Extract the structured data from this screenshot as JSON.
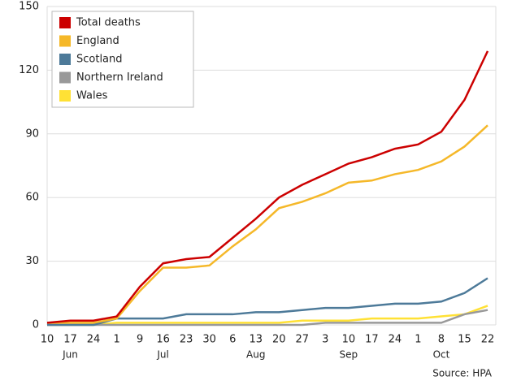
{
  "chart_data": {
    "type": "line",
    "categories": [
      "10",
      "17",
      "24",
      "1",
      "9",
      "16",
      "23",
      "30",
      "6",
      "13",
      "20",
      "27",
      "3",
      "10",
      "17",
      "24",
      "1",
      "8",
      "15",
      "22"
    ],
    "month_labels": [
      null,
      "Jun",
      null,
      null,
      null,
      "Jul",
      null,
      null,
      null,
      "Aug",
      null,
      null,
      null,
      "Sep",
      null,
      null,
      null,
      "Oct",
      null,
      null
    ],
    "series": [
      {
        "name": "Total deaths",
        "color": "#cc0000",
        "values": [
          1,
          2,
          2,
          4,
          18,
          29,
          31,
          32,
          41,
          50,
          60,
          66,
          71,
          76,
          79,
          83,
          85,
          91,
          106,
          129
        ]
      },
      {
        "name": "England",
        "color": "#f5b829",
        "values": [
          1,
          1,
          1,
          3,
          16,
          27,
          27,
          28,
          37,
          45,
          55,
          58,
          62,
          67,
          68,
          71,
          73,
          77,
          84,
          94
        ]
      },
      {
        "name": "Scotland",
        "color": "#4d7a99",
        "values": [
          0,
          0,
          0,
          3,
          3,
          3,
          5,
          5,
          5,
          6,
          6,
          7,
          8,
          8,
          9,
          10,
          10,
          11,
          15,
          22
        ]
      },
      {
        "name": "Northern Ireland",
        "color": "#999999",
        "values": [
          0,
          0,
          0,
          0,
          0,
          0,
          0,
          0,
          0,
          0,
          0,
          0,
          1,
          1,
          1,
          1,
          1,
          1,
          5,
          7
        ]
      },
      {
        "name": "Wales",
        "color": "#ffe135",
        "values": [
          0,
          0,
          0,
          1,
          1,
          1,
          1,
          1,
          1,
          1,
          1,
          2,
          2,
          2,
          3,
          3,
          3,
          4,
          5,
          9
        ]
      }
    ],
    "ylim": [
      0,
      150
    ],
    "yticks": [
      0,
      30,
      60,
      90,
      120,
      150
    ],
    "grid": true,
    "legend": "top-left",
    "source": "Source: HPA"
  }
}
